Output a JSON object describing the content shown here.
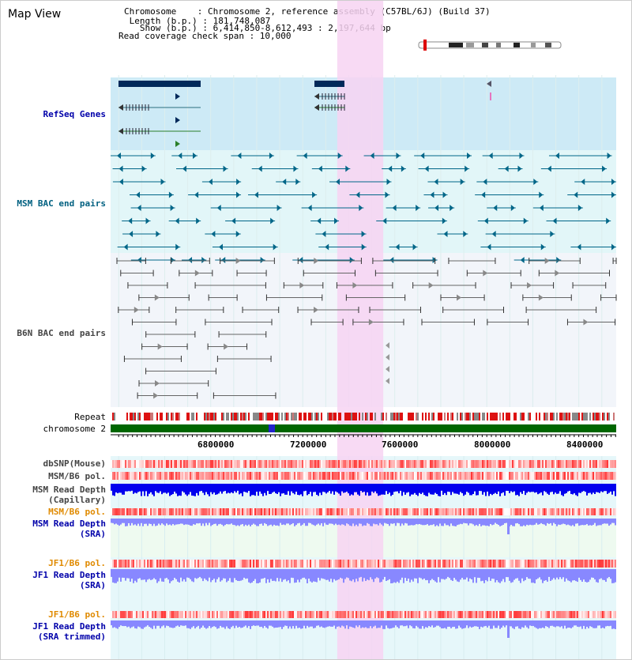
{
  "page": {
    "title": "Map View"
  },
  "info": {
    "chromosome": "Chromosome    : Chromosome 2, reference assembly (C57BL/6J) (Build 37)",
    "length": " Length (b.p.) : 181,748,087",
    "show": "   Show (b.p.) : 6,414,850-8,612,493 : 2,197,644 bp",
    "coverage": "Read coverage check span : 10,000"
  },
  "tracks": {
    "refseq": "RefSeq Genes",
    "msm_bac": "MSM BAC end pairs",
    "b6n_bac": "B6N BAC end pairs",
    "repeat": "Repeat",
    "chromosome": "chromosome 2",
    "dbsnp": "dbSNP(Mouse)",
    "msm_b6_pol": "MSM/B6 pol.",
    "msm_depth_cap_1": "MSM Read Depth",
    "msm_depth_cap_2": "(Capillary)",
    "msm_b6_pol_2": "MSM/B6 pol.",
    "msm_depth_sra_1": "MSM Read Depth",
    "msm_depth_sra_2": "(SRA)",
    "jf1_b6_pol": "JF1/B6 pol.",
    "jf1_depth_sra_1": "JF1 Read Depth",
    "jf1_depth_sra_2": "(SRA)",
    "jf1_b6_pol_2": "JF1/B6 pol.",
    "jf1_depth_trim_1": "JF1 Read Depth",
    "jf1_depth_trim_2": "(SRA trimmed)"
  },
  "axis": {
    "ticks": [
      {
        "label": "6800000",
        "value": 6800000
      },
      {
        "label": "7200000",
        "value": 7200000
      },
      {
        "label": "7600000",
        "value": 7600000
      },
      {
        "label": "8000000",
        "value": 8000000
      },
      {
        "label": "8400000",
        "value": 8400000
      }
    ]
  },
  "region": {
    "start": 6414850,
    "end": 8612493,
    "highlight_start": 7400000,
    "highlight_end": 7600000
  },
  "colors": {
    "refseq_bg": "#cdeaf6",
    "msm_bg": "#e2f6f8",
    "b6n_bg": "#f2f5fa",
    "highlight": "#f7d3f2",
    "gene": "#00295a",
    "msm_pair": "#006688",
    "b6n_pair": "#666666",
    "chromosome": "#006600",
    "depth_cap": "#0000ee",
    "depth_sra": "#8888ff"
  }
}
